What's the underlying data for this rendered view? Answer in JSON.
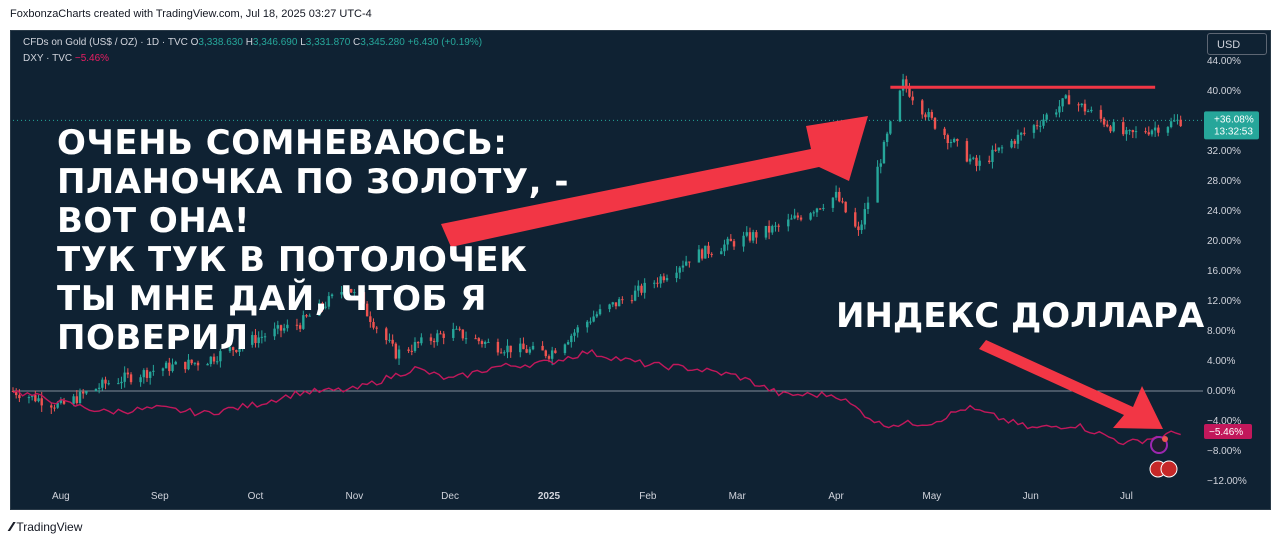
{
  "header": {
    "attribution": "FoxbonzaCharts created with TradingView.com, Jul 18, 2025 03:27 UTC-4"
  },
  "legend": {
    "symbol": "CFDs on Gold (US$ / OZ) · 1D · TVC",
    "o_label": "O",
    "o": "3,338.630",
    "h_label": "H",
    "h": "3,346.690",
    "l_label": "L",
    "l": "3,331.870",
    "c_label": "C",
    "c": "3,345.280",
    "change": "+6.430 (+0.19%)",
    "dxy_symbol": "DXY · TVC",
    "dxy_change": "−5.46%"
  },
  "currency_button": "USD",
  "overlay_text": "ОЧЕНЬ СОМНЕВАЮСЬ:\nПЛАНОЧКА ПО ЗОЛОТУ, -\nВОТ ОНА!\nТУК ТУК В ПОТОЛОЧЕК\nТЫ МНЕ ДАЙ, ЧТОБ Я\nПОВЕРИЛ",
  "index_text": "ИНДЕКС ДОЛЛАРА",
  "gold_badge": {
    "value": "+36.08%",
    "timer": "13:32:53"
  },
  "dxy_badge": "−5.46%",
  "footer": "TradingView",
  "colors": {
    "up": "#26a69a",
    "down": "#ef5350",
    "dxy": "#c2185b",
    "arrow": "#f23645",
    "bg": "#0f2233"
  },
  "chart_data": {
    "type": "line",
    "yaxis_unit": "percent",
    "ylim": [
      -12,
      44
    ],
    "y_ticks": [
      "44.00%",
      "40.00%",
      "32.00%",
      "28.00%",
      "24.00%",
      "20.00%",
      "16.00%",
      "12.00%",
      "8.00%",
      "4.00%",
      "0.00%",
      "−4.00%",
      "−8.00%",
      "−12.00%"
    ],
    "y_tick_values": [
      44,
      40,
      32,
      28,
      24,
      20,
      16,
      12,
      8,
      4,
      0,
      -4,
      -8,
      -12
    ],
    "x_ticks": [
      "Aug",
      "Sep",
      "Oct",
      "Nov",
      "Dec",
      "2025",
      "Feb",
      "Mar",
      "Apr",
      "May",
      "Jun",
      "Jul"
    ],
    "x_tick_values": [
      "2024-08-01",
      "2024-09-01",
      "2024-10-01",
      "2024-11-01",
      "2024-12-01",
      "2025-01-01",
      "2025-02-01",
      "2025-03-01",
      "2025-04-01",
      "2025-05-01",
      "2025-06-01",
      "2025-07-01"
    ],
    "x_range": [
      "2024-07-17",
      "2025-07-25"
    ],
    "series": [
      {
        "name": "CFDs on Gold (US$ / OZ) · 1D · TVC",
        "dates": [
          "2024-07-17",
          "2024-08-01",
          "2024-08-15",
          "2024-09-01",
          "2024-09-15",
          "2024-10-01",
          "2024-10-15",
          "2024-10-30",
          "2024-11-14",
          "2024-12-01",
          "2024-12-15",
          "2025-01-01",
          "2025-01-15",
          "2025-02-01",
          "2025-02-15",
          "2025-03-01",
          "2025-03-15",
          "2025-04-01",
          "2025-04-08",
          "2025-04-22",
          "2025-05-01",
          "2025-05-15",
          "2025-06-01",
          "2025-06-13",
          "2025-07-01",
          "2025-07-18"
        ],
        "values": [
          0,
          -2,
          1,
          3,
          4,
          7,
          9,
          14,
          5,
          8,
          6,
          5,
          10,
          14,
          18,
          20,
          22,
          26,
          21,
          41,
          36,
          30,
          35,
          39,
          34,
          36.08
        ]
      },
      {
        "name": "DXY · TVC",
        "dates": [
          "2024-07-17",
          "2024-08-01",
          "2024-08-15",
          "2024-09-01",
          "2024-09-15",
          "2024-10-01",
          "2024-10-15",
          "2024-11-01",
          "2024-11-20",
          "2024-12-01",
          "2024-12-15",
          "2025-01-01",
          "2025-01-13",
          "2025-02-01",
          "2025-02-15",
          "2025-03-01",
          "2025-03-15",
          "2025-04-01",
          "2025-04-15",
          "2025-05-01",
          "2025-05-12",
          "2025-06-01",
          "2025-06-15",
          "2025-07-01",
          "2025-07-18"
        ],
        "values": [
          0,
          -1.5,
          -2.8,
          -2.3,
          -3.0,
          -1.8,
          -0.2,
          0.2,
          3.0,
          1.5,
          3.2,
          3.8,
          5.2,
          3.5,
          3.0,
          2.0,
          -0.5,
          -0.5,
          -4.5,
          -4.2,
          -2.2,
          -5.0,
          -4.5,
          -7.0,
          -5.46
        ]
      }
    ],
    "levels": [
      {
        "label": "",
        "value": 40.5
      }
    ],
    "grid": false,
    "legend": "top-left"
  }
}
